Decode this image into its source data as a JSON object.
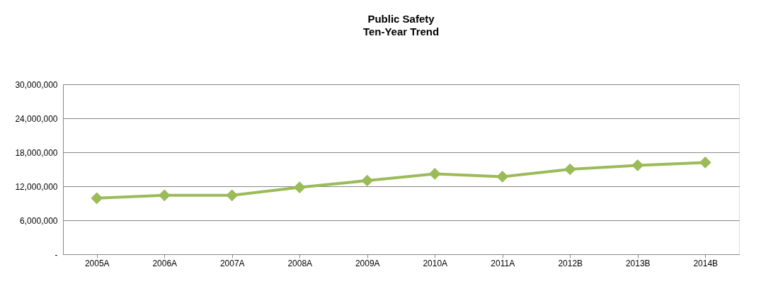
{
  "chart_data": {
    "type": "line",
    "title": "Public Safety",
    "subtitle": "Ten-Year Trend",
    "categories": [
      "2005A",
      "2006A",
      "2007A",
      "2008A",
      "2009A",
      "2010A",
      "2011A",
      "2012B",
      "2013B",
      "2014B"
    ],
    "series": [
      {
        "color": "#9bbb59",
        "values": [
          9900000,
          10400000,
          10400000,
          11800000,
          13000000,
          14200000,
          13700000,
          15000000,
          15700000,
          16200000
        ]
      }
    ],
    "ylim": [
      0,
      30000000
    ],
    "yticks": [
      {
        "value": 0,
        "label": "-"
      },
      {
        "value": 6000000,
        "label": "6,000,000"
      },
      {
        "value": 12000000,
        "label": "12,000,000"
      },
      {
        "value": 18000000,
        "label": "18,000,000"
      },
      {
        "value": 24000000,
        "label": "24,000,000"
      },
      {
        "value": 30000000,
        "label": "30,000,000"
      }
    ],
    "grid": "y",
    "marker": "diamond",
    "line_style": "solid"
  }
}
